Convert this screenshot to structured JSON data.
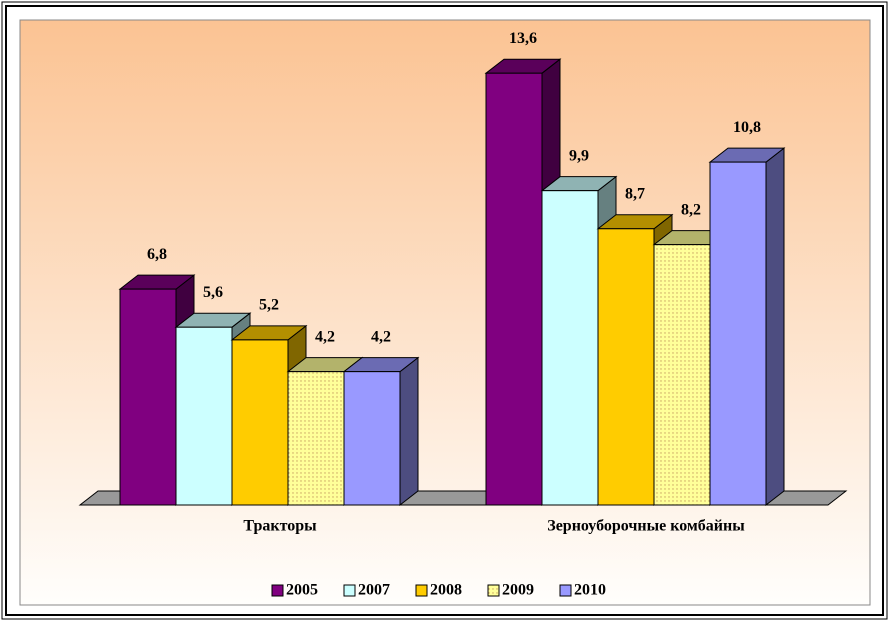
{
  "chart_data": {
    "type": "bar3d",
    "categories": [
      "Тракторы",
      "Зерноуборочные комбайны"
    ],
    "series": [
      {
        "name": "2005",
        "color": "#800080",
        "values": [
          6.8,
          13.6
        ],
        "value_labels": [
          "6,8",
          "13,6"
        ]
      },
      {
        "name": "2007",
        "color": "#ccffff",
        "values": [
          5.6,
          9.9
        ],
        "value_labels": [
          "5,6",
          "9,9"
        ]
      },
      {
        "name": "2008",
        "color": "#ffcc00",
        "values": [
          5.2,
          8.7
        ],
        "value_labels": [
          "5,2",
          "8,7"
        ]
      },
      {
        "name": "2009",
        "color": "#ffff99",
        "values": [
          4.2,
          8.2
        ],
        "value_labels": [
          "4,2",
          "8,2"
        ]
      },
      {
        "name": "2010",
        "color": "#9999ff",
        "values": [
          4.2,
          10.8
        ],
        "value_labels": [
          "4,2",
          "10,8"
        ]
      }
    ],
    "legend": "bottom"
  }
}
